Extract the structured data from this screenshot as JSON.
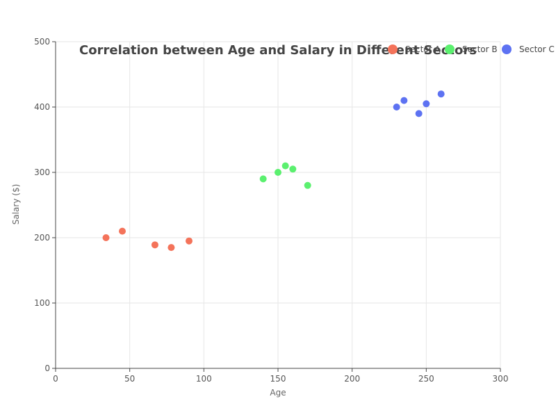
{
  "chart_data": {
    "type": "scatter",
    "title": "Correlation between Age and Salary in Different Sectors",
    "xlabel": "Age",
    "ylabel": "Salary ($)",
    "xlim": [
      0,
      300
    ],
    "ylim": [
      0,
      500
    ],
    "xticks": [
      0,
      50,
      100,
      150,
      200,
      250,
      300
    ],
    "yticks": [
      0,
      100,
      200,
      300,
      400,
      500
    ],
    "grid": true,
    "legend_position": "top-right",
    "series": [
      {
        "name": "Sector A",
        "color": "#f4735a",
        "points": [
          [
            34,
            200
          ],
          [
            45,
            210
          ],
          [
            67,
            189
          ],
          [
            78,
            185
          ],
          [
            90,
            195
          ]
        ]
      },
      {
        "name": "Sector B",
        "color": "#5bf06f",
        "points": [
          [
            140,
            290
          ],
          [
            150,
            300
          ],
          [
            155,
            310
          ],
          [
            160,
            305
          ],
          [
            170,
            280
          ]
        ]
      },
      {
        "name": "Sector C",
        "color": "#5d72f2",
        "points": [
          [
            230,
            400
          ],
          [
            235,
            410
          ],
          [
            245,
            390
          ],
          [
            250,
            405
          ],
          [
            260,
            420
          ]
        ]
      }
    ]
  }
}
